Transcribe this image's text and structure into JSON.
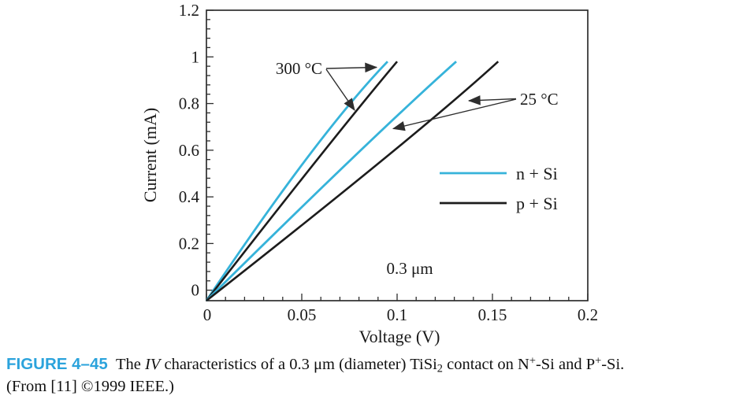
{
  "chart_data": {
    "type": "line",
    "title": "",
    "xlabel": "Voltage (V)",
    "ylabel": "Current (mA)",
    "xlim": [
      0,
      0.2
    ],
    "ylim": [
      -0.045,
      1.2
    ],
    "grid": false,
    "x_major_ticks": [
      0,
      0.05,
      0.1,
      0.15,
      0.2
    ],
    "x_tick_labels": [
      "0",
      "0.05",
      "0.1",
      "0.15",
      "0.2"
    ],
    "x_minor_step": 0.01,
    "y_major_ticks": [
      0,
      0.2,
      0.4,
      0.6,
      0.8,
      1.0,
      1.2
    ],
    "y_tick_labels": [
      "0",
      "0.2",
      "0.4",
      "0.6",
      "0.8",
      "1",
      "1.2"
    ],
    "y_minor_step": 0.04,
    "series": [
      {
        "name": "n + Si (300 °C)",
        "color": "#36B3DA",
        "width": 2.8,
        "points": [
          [
            0,
            -0.045
          ],
          [
            0.053,
            0.569
          ],
          [
            0.095,
            0.98
          ]
        ]
      },
      {
        "name": "p + Si (300 °C)",
        "color": "#1c1c1c",
        "width": 2.6,
        "points": [
          [
            0,
            -0.045
          ],
          [
            0.059,
            0.569
          ],
          [
            0.1,
            0.98
          ]
        ]
      },
      {
        "name": "n + Si (25 °C)",
        "color": "#36B3DA",
        "width": 2.8,
        "points": [
          [
            0,
            -0.045
          ],
          [
            0.077,
            0.569
          ],
          [
            0.131,
            0.98
          ]
        ]
      },
      {
        "name": "p + Si (25 °C)",
        "color": "#1c1c1c",
        "width": 2.6,
        "points": [
          [
            0,
            -0.045
          ],
          [
            0.094,
            0.569
          ],
          [
            0.153,
            0.98
          ]
        ]
      }
    ],
    "legend": {
      "position": "inside-right",
      "entries": [
        {
          "label": "n + Si",
          "color": "#36B3DA"
        },
        {
          "label": "p + Si",
          "color": "#1c1c1c"
        }
      ]
    },
    "annotations": [
      {
        "id": "anno-300c",
        "text": "300 °C",
        "targets": [
          "n + Si (300 °C)",
          "p + Si (300 °C)"
        ]
      },
      {
        "id": "anno-25c",
        "text": "25 °C",
        "targets": [
          "p + Si (25 °C)",
          "n + Si (25 °C)"
        ]
      },
      {
        "id": "size-label",
        "text": "0.3 μm"
      }
    ]
  },
  "caption": {
    "label": "FIGURE 4–45",
    "label_color": "#2BA3DC",
    "segments": [
      {
        "t": "The "
      },
      {
        "t": "IV",
        "style": "italic"
      },
      {
        "t": " characteristics of a 0.3 μm (diameter) TiSi"
      },
      {
        "t": "2",
        "style": "sub"
      },
      {
        "t": " contact on N"
      },
      {
        "t": "+",
        "style": "sup"
      },
      {
        "t": "-Si and P"
      },
      {
        "t": "+",
        "style": "sup"
      },
      {
        "t": "-Si."
      },
      {
        "br": true
      },
      {
        "t": "(From [11] ©1999 IEEE.)"
      }
    ]
  }
}
